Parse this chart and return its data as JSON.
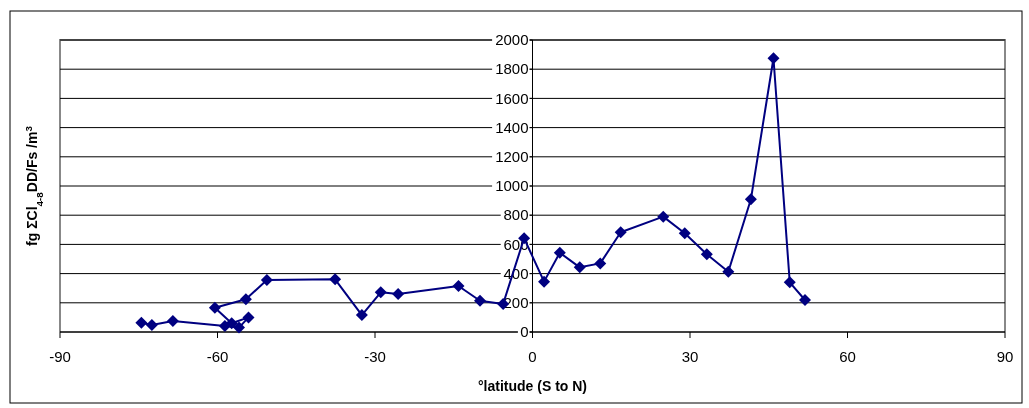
{
  "chart_data": {
    "type": "line",
    "xlabel": "°latitude (S to N)",
    "ylabel": "fg ΣCl$_{4-8}$DD/Fs /m$^{3}$",
    "xlim": [
      -90,
      90
    ],
    "xticks": [
      -90,
      -60,
      -30,
      0,
      30,
      60,
      90
    ],
    "ylim": [
      0,
      2000
    ],
    "yticks": [
      0,
      200,
      400,
      600,
      800,
      1000,
      1200,
      1400,
      1600,
      1800,
      2000
    ],
    "grid": "y",
    "marker": "diamond",
    "line_style": "solid",
    "series": [
      {
        "color": "#000080",
        "x": [
          -74.5,
          -72.5,
          -68.5,
          -58.6,
          -55.9,
          -54.1,
          -57.3,
          -60.5,
          -54.6,
          -50.6,
          -37.6,
          -32.5,
          -28.9,
          -25.6,
          -14.1,
          -10,
          -5.6,
          -1.6,
          2.2,
          5.2,
          9,
          12.9,
          16.8,
          24.9,
          29,
          33.2,
          37.3,
          41.6,
          45.9,
          49,
          51.9
        ],
        "values": [
          64,
          48,
          75,
          41,
          30,
          100,
          60,
          166,
          224,
          356,
          361,
          116,
          272,
          260,
          315,
          214,
          192,
          642,
          345,
          543,
          443,
          470,
          683,
          790,
          676,
          532,
          413,
          909,
          1875,
          340,
          219
        ]
      }
    ]
  }
}
